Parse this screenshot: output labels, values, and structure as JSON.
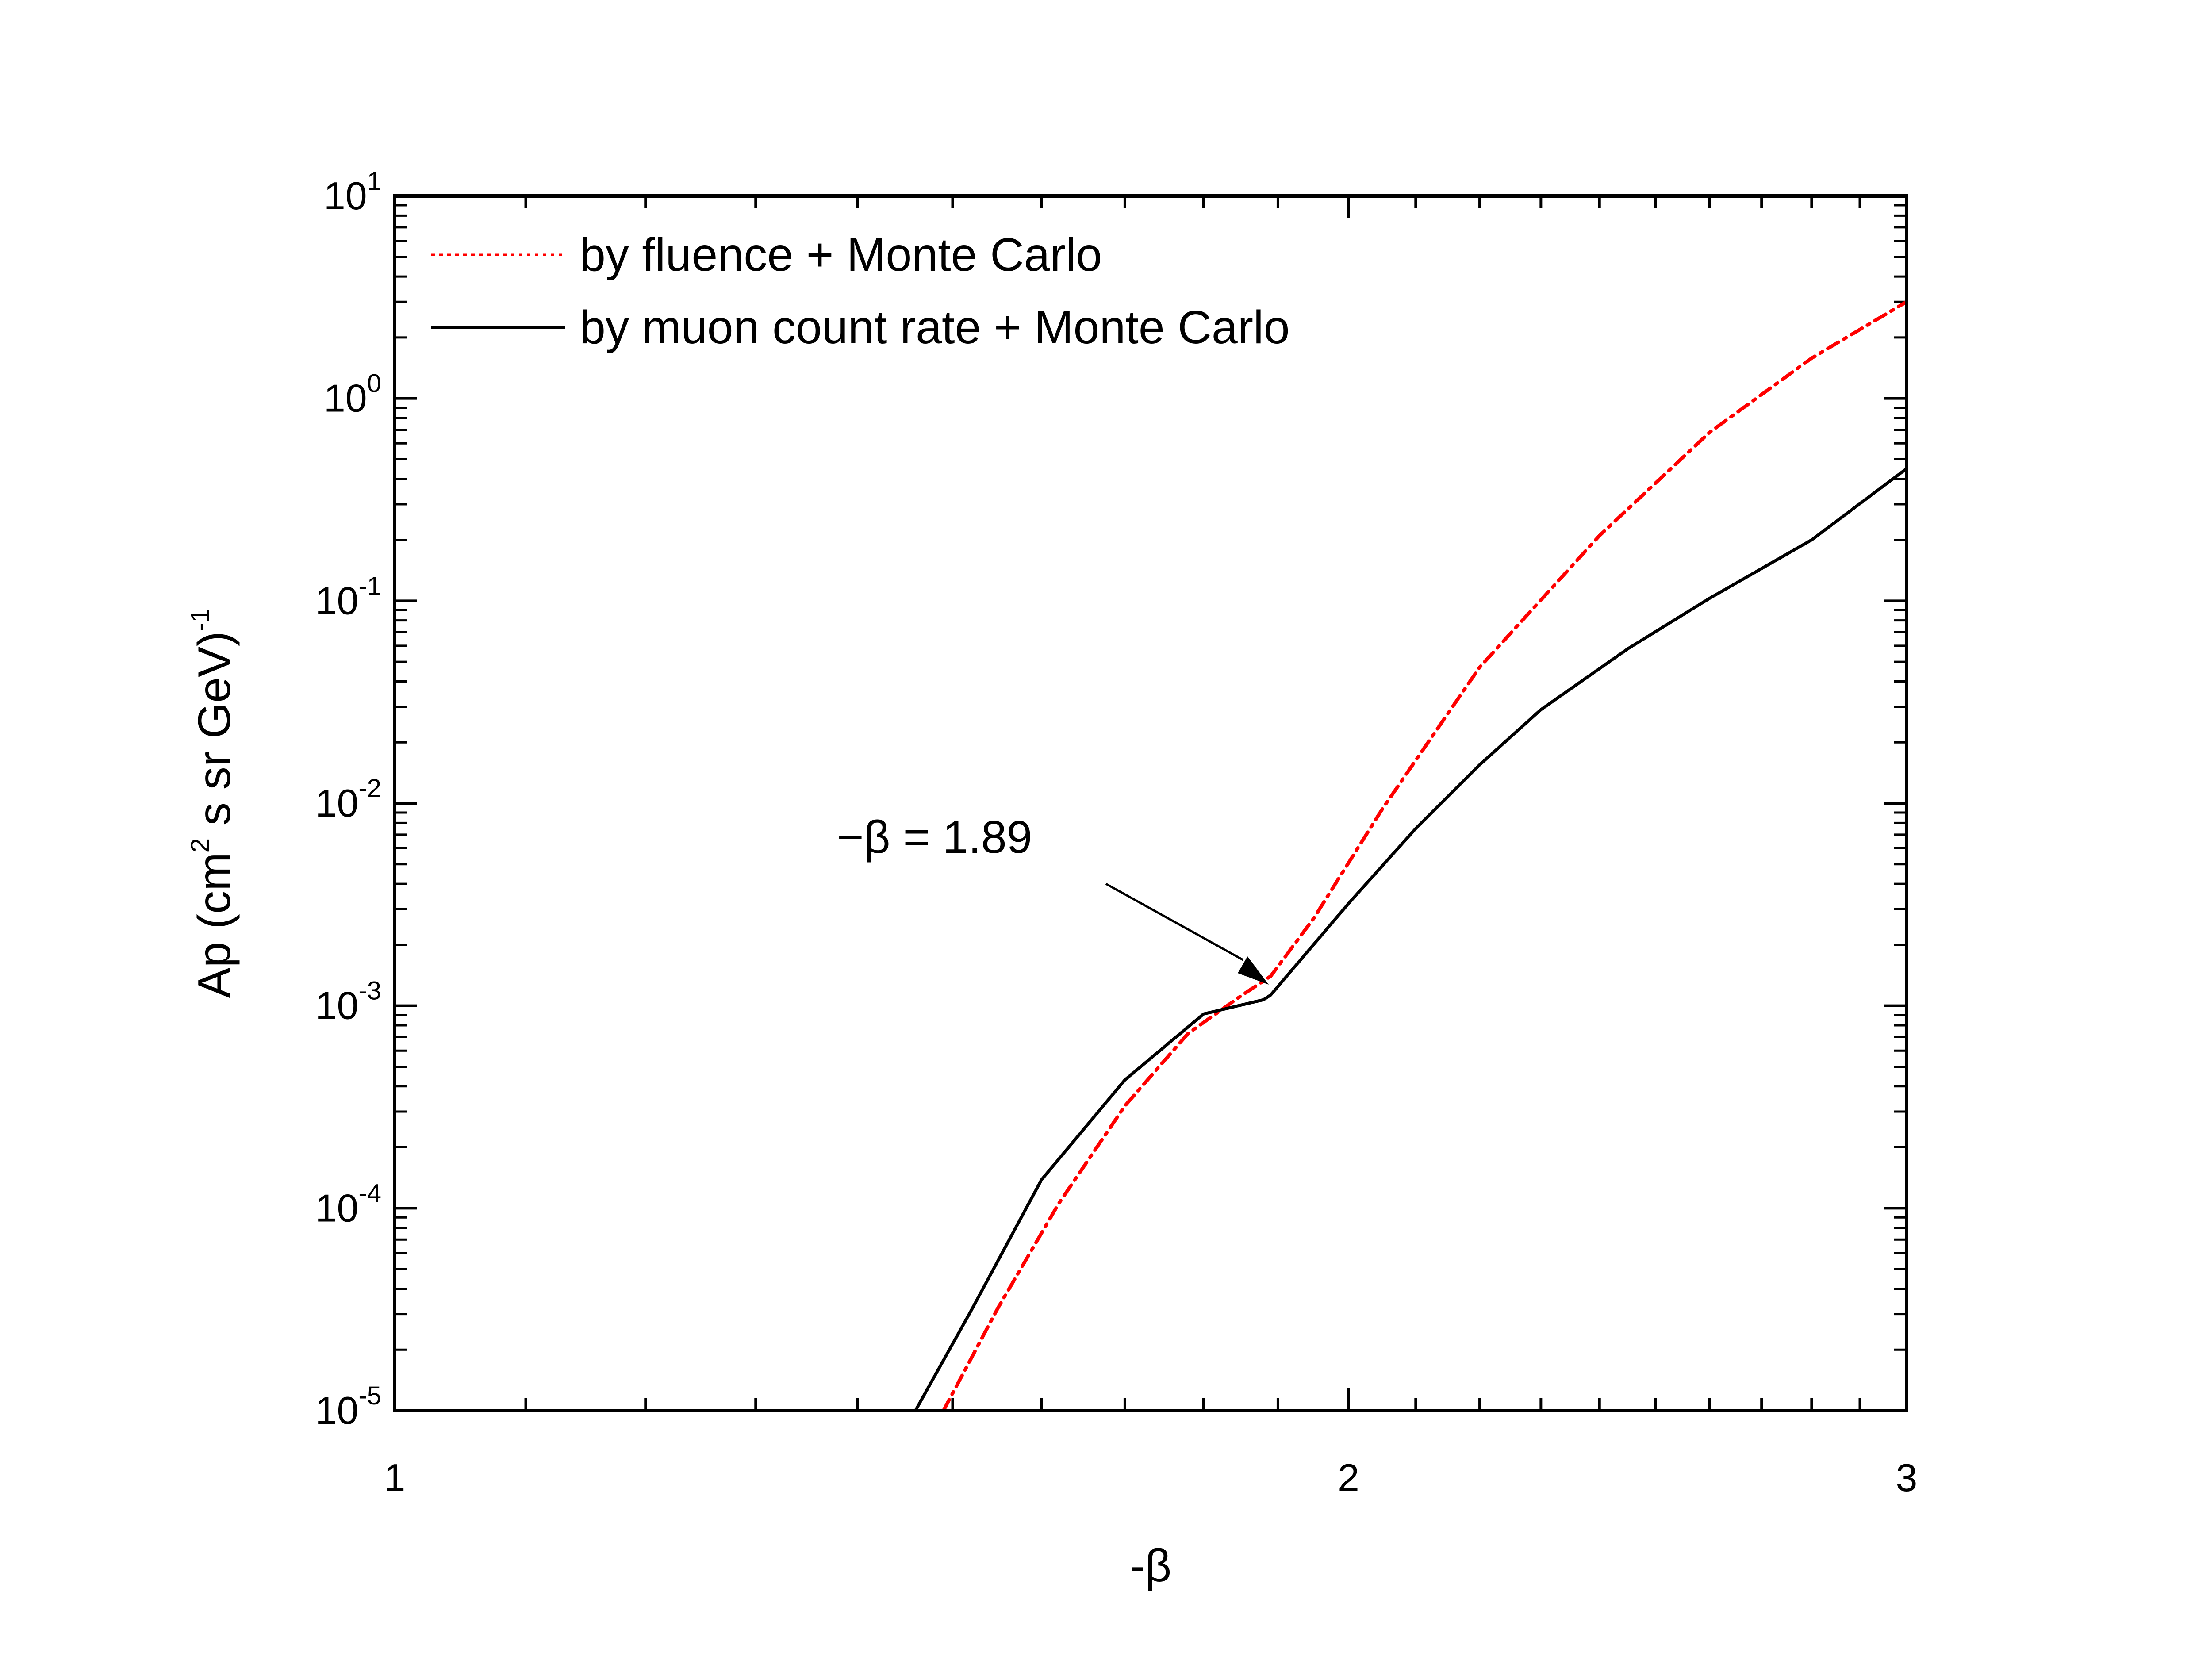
{
  "chart_data": {
    "type": "line",
    "xlabel": "-β",
    "ylabel": "Ap (cm² s sr GeV)⁻¹",
    "ylabel_parts": {
      "pre": "Ap (cm",
      "sup1": "2",
      "mid": " s sr GeV)",
      "sup2": "-1"
    },
    "x_scale": "log",
    "y_scale": "log",
    "xlim": [
      1,
      3
    ],
    "ylim": [
      1e-05,
      10
    ],
    "x_ticks": [
      {
        "value": 1,
        "label": "1"
      },
      {
        "value": 2,
        "label": "2"
      },
      {
        "value": 3,
        "label": "3"
      }
    ],
    "y_ticks": [
      {
        "value": 10,
        "base": "10",
        "exp": "1"
      },
      {
        "value": 1,
        "base": "10",
        "exp": "0"
      },
      {
        "value": 0.1,
        "base": "10",
        "exp": "-1"
      },
      {
        "value": 0.01,
        "base": "10",
        "exp": "-2"
      },
      {
        "value": 0.001,
        "base": "10",
        "exp": "-3"
      },
      {
        "value": 0.0001,
        "base": "10",
        "exp": "-4"
      },
      {
        "value": 1e-05,
        "base": "10",
        "exp": "-5"
      }
    ],
    "grid": false,
    "legend_position": "top-left",
    "series": [
      {
        "name": "by fluence + Monte Carlo",
        "color": "#ff0000",
        "style": "dash-dot",
        "x": [
          1.49,
          1.55,
          1.62,
          1.7,
          1.78,
          1.85,
          1.89,
          1.95,
          2.05,
          2.2,
          2.4,
          2.6,
          2.8,
          3.0
        ],
        "y": [
          1e-05,
          3.2e-05,
          0.000105,
          0.00032,
          0.00073,
          0.00112,
          0.0014,
          0.0027,
          0.0094,
          0.047,
          0.21,
          0.68,
          1.58,
          3.0
        ]
      },
      {
        "name": "by muon count rate + Monte Carlo",
        "color": "#000000",
        "style": "solid",
        "x": [
          1.46,
          1.52,
          1.6,
          1.7,
          1.8,
          1.88,
          1.89,
          2.0,
          2.1,
          2.2,
          2.3,
          2.45,
          2.6,
          2.8,
          3.0
        ],
        "y": [
          1e-05,
          3.1e-05,
          0.000138,
          0.00043,
          0.00091,
          0.00107,
          0.00113,
          0.0032,
          0.0075,
          0.0155,
          0.029,
          0.058,
          0.103,
          0.2,
          0.45
        ]
      }
    ],
    "annotations": [
      {
        "text": "−β = 1.89",
        "x": 1.89,
        "y": 0.0011
      }
    ]
  }
}
